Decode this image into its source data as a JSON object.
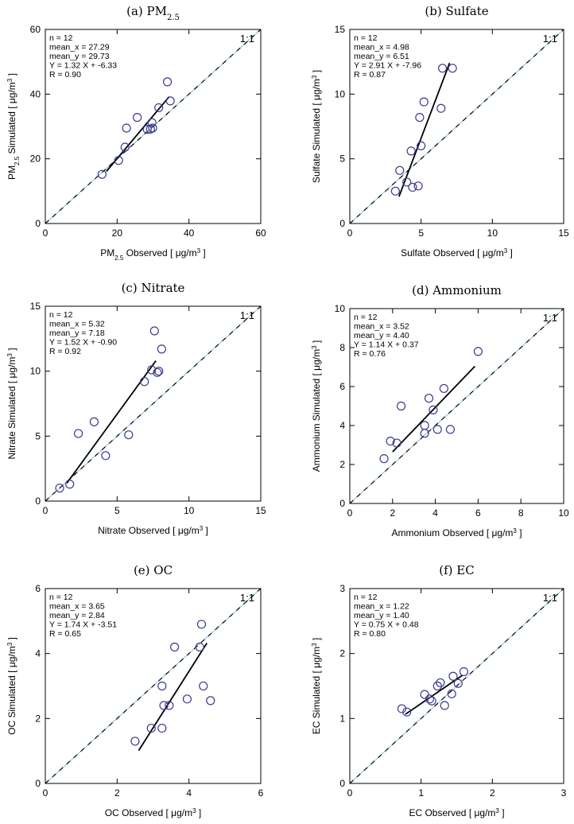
{
  "chart_data": [
    {
      "type": "scatter",
      "title": "(a) PM",
      "title_sub": "2.5",
      "xlabel_parts": [
        "PM",
        "2.5",
        " Observed [ μg/m",
        "3",
        " ]"
      ],
      "ylabel_parts": [
        "PM",
        "2.5",
        " Simulated [ μg/m",
        "3",
        " ]"
      ],
      "xlim": [
        0,
        60
      ],
      "ylim": [
        0,
        60
      ],
      "xticks": [
        "0",
        "20",
        "40",
        "60"
      ],
      "yticks": [
        "0",
        "20",
        "40",
        "60"
      ],
      "stats": [
        "n = 12",
        "mean_x = 27.29",
        "mean_y = 29.73",
        "Y = 1.32 X + -6.33",
        "R = 0.90"
      ],
      "one_to_one_label": "1:1",
      "points": [
        [
          15.8,
          15.2
        ],
        [
          20.4,
          19.5
        ],
        [
          22.2,
          23.6
        ],
        [
          22.6,
          29.5
        ],
        [
          25.6,
          32.8
        ],
        [
          28.4,
          29.1
        ],
        [
          29.3,
          29.2
        ],
        [
          29.7,
          31.2
        ],
        [
          29.9,
          29.5
        ],
        [
          31.6,
          35.8
        ],
        [
          34.0,
          43.8
        ],
        [
          34.8,
          37.9
        ]
      ],
      "regression": {
        "slope": 1.32,
        "intercept": -6.33,
        "x_range": [
          17.0,
          34.5
        ]
      },
      "colors": {
        "points": "#3b3b8f",
        "fit": "#000000",
        "diag": "#000000",
        "diag_alt": "#8fd3d8"
      }
    },
    {
      "type": "scatter",
      "title": "(b) Sulfate",
      "xlabel_parts": [
        "Sulfate Observed [ μg/m",
        "3",
        " ]"
      ],
      "ylabel_parts": [
        "Sulfate Simulated [ μg/m",
        "3",
        " ]"
      ],
      "xlim": [
        0,
        15
      ],
      "ylim": [
        0,
        15
      ],
      "xticks": [
        "0",
        "5",
        "10",
        "15"
      ],
      "yticks": [
        "0",
        "5",
        "10",
        "15"
      ],
      "stats": [
        "n = 12",
        "mean_x = 4.98",
        "mean_y = 6.51",
        "Y = 2.91 X + -7.96",
        "R = 0.87"
      ],
      "one_to_one_label": "1:1",
      "points": [
        [
          3.2,
          2.5
        ],
        [
          3.5,
          4.1
        ],
        [
          4.0,
          3.2
        ],
        [
          4.4,
          2.8
        ],
        [
          4.8,
          2.9
        ],
        [
          4.3,
          5.6
        ],
        [
          5.0,
          6.0
        ],
        [
          4.9,
          8.2
        ],
        [
          5.2,
          9.4
        ],
        [
          6.4,
          8.9
        ],
        [
          6.5,
          12.0
        ],
        [
          7.2,
          12.0
        ]
      ],
      "regression": {
        "slope": 2.91,
        "intercept": -7.96,
        "x_range": [
          3.45,
          7.0
        ]
      },
      "colors": {
        "points": "#3b3b8f",
        "fit": "#000000",
        "diag": "#000000",
        "diag_alt": "#8fd3d8"
      }
    },
    {
      "type": "scatter",
      "title": "(c) Nitrate",
      "xlabel_parts": [
        "Nitrate Observed [ μg/m",
        "3",
        " ]"
      ],
      "ylabel_parts": [
        "Nitrate Simulated [ μg/m",
        "3",
        " ]"
      ],
      "xlim": [
        0,
        15
      ],
      "ylim": [
        0,
        15
      ],
      "xticks": [
        "0",
        "5",
        "10",
        "15"
      ],
      "yticks": [
        "0",
        "5",
        "10",
        "15"
      ],
      "stats": [
        "n = 12",
        "mean_x = 5.32",
        "mean_y = 7.18",
        "Y = 1.52 X + -0.90",
        "R = 0.92"
      ],
      "one_to_one_label": "1:1",
      "points": [
        [
          1.0,
          1.0
        ],
        [
          1.7,
          1.3
        ],
        [
          2.3,
          5.2
        ],
        [
          3.4,
          6.1
        ],
        [
          4.2,
          3.5
        ],
        [
          5.8,
          5.1
        ],
        [
          6.9,
          9.2
        ],
        [
          7.4,
          10.1
        ],
        [
          7.6,
          13.1
        ],
        [
          7.8,
          9.9
        ],
        [
          7.9,
          10.0
        ],
        [
          8.1,
          11.7
        ]
      ],
      "regression": {
        "slope": 1.52,
        "intercept": -0.9,
        "x_range": [
          1.5,
          7.7
        ]
      },
      "colors": {
        "points": "#3b3b8f",
        "fit": "#000000",
        "diag": "#000000",
        "diag_alt": "#8fd3d8"
      }
    },
    {
      "type": "scatter",
      "title": "(d) Ammonium",
      "xlabel_parts": [
        "Ammonium Observed [ μg/m",
        "3",
        " ]"
      ],
      "ylabel_parts": [
        "Ammonium Simulated [ μg/m",
        "3",
        " ]"
      ],
      "xlim": [
        0,
        10
      ],
      "ylim": [
        0,
        10
      ],
      "xticks": [
        "0",
        "2",
        "4",
        "6",
        "8",
        "10"
      ],
      "yticks": [
        "0",
        "2",
        "4",
        "6",
        "8",
        "10"
      ],
      "stats": [
        "n = 12",
        "mean_x = 3.52",
        "mean_y = 4.40",
        "Y = 1.14 X + 0.37",
        "R = 0.76"
      ],
      "one_to_one_label": "1:1",
      "points": [
        [
          1.6,
          2.3
        ],
        [
          1.9,
          3.2
        ],
        [
          2.2,
          3.1
        ],
        [
          2.4,
          5.0
        ],
        [
          3.5,
          3.6
        ],
        [
          3.5,
          4.0
        ],
        [
          3.7,
          5.4
        ],
        [
          3.9,
          4.8
        ],
        [
          4.1,
          3.8
        ],
        [
          4.4,
          5.9
        ],
        [
          4.7,
          3.8
        ],
        [
          6.0,
          7.8
        ]
      ],
      "regression": {
        "slope": 1.14,
        "intercept": 0.37,
        "x_range": [
          2.0,
          5.85
        ]
      },
      "colors": {
        "points": "#3b3b8f",
        "fit": "#000000",
        "diag": "#000000",
        "diag_alt": "#8fd3d8"
      }
    },
    {
      "type": "scatter",
      "title": "(e) OC",
      "xlabel_parts": [
        "OC Observed [ μg/m",
        "3",
        " ]"
      ],
      "ylabel_parts": [
        "OC Simulated [ μg/m",
        "3",
        " ]"
      ],
      "xlim": [
        0,
        6
      ],
      "ylim": [
        0,
        6
      ],
      "xticks": [
        "0",
        "2",
        "4",
        "6"
      ],
      "yticks": [
        "0",
        "2",
        "4",
        "6"
      ],
      "stats": [
        "n = 12",
        "mean_x = 3.65",
        "mean_y = 2.84",
        "Y = 1.74 X + -3.51",
        "R = 0.65"
      ],
      "one_to_one_label": "1:1",
      "points": [
        [
          2.5,
          1.3
        ],
        [
          2.95,
          1.7
        ],
        [
          3.25,
          1.7
        ],
        [
          3.3,
          2.4
        ],
        [
          3.25,
          3.0
        ],
        [
          3.45,
          2.4
        ],
        [
          3.6,
          4.2
        ],
        [
          3.95,
          2.6
        ],
        [
          4.3,
          4.2
        ],
        [
          4.35,
          4.9
        ],
        [
          4.4,
          3.0
        ],
        [
          4.6,
          2.55
        ]
      ],
      "regression": {
        "slope": 1.74,
        "intercept": -3.51,
        "x_range": [
          2.6,
          4.5
        ]
      },
      "colors": {
        "points": "#3b3b8f",
        "fit": "#000000",
        "diag": "#000000",
        "diag_alt": "#8fd3d8"
      }
    },
    {
      "type": "scatter",
      "title": "(f) EC",
      "xlabel_parts": [
        "EC Observed [ μg/m",
        "3",
        " ]"
      ],
      "ylabel_parts": [
        "EC Simulated [ μg/m",
        "3",
        " ]"
      ],
      "xlim": [
        0,
        3
      ],
      "ylim": [
        0,
        3
      ],
      "xticks": [
        "0",
        "1",
        "2",
        "3"
      ],
      "yticks": [
        "0",
        "1",
        "2",
        "3"
      ],
      "stats": [
        "n = 12",
        "mean_x = 1.22",
        "mean_y = 1.40",
        "Y = 0.75 X + 0.48",
        "R = 0.80"
      ],
      "one_to_one_label": "1:1",
      "points": [
        [
          0.73,
          1.15
        ],
        [
          0.8,
          1.1
        ],
        [
          1.05,
          1.37
        ],
        [
          1.12,
          1.3
        ],
        [
          1.15,
          1.27
        ],
        [
          1.23,
          1.5
        ],
        [
          1.27,
          1.55
        ],
        [
          1.33,
          1.2
        ],
        [
          1.43,
          1.38
        ],
        [
          1.45,
          1.65
        ],
        [
          1.52,
          1.54
        ],
        [
          1.6,
          1.72
        ]
      ],
      "regression": {
        "slope": 0.75,
        "intercept": 0.48,
        "x_range": [
          0.78,
          1.58
        ]
      },
      "colors": {
        "points": "#3b3b8f",
        "fit": "#000000",
        "diag": "#000000",
        "diag_alt": "#8fd3d8"
      }
    }
  ]
}
